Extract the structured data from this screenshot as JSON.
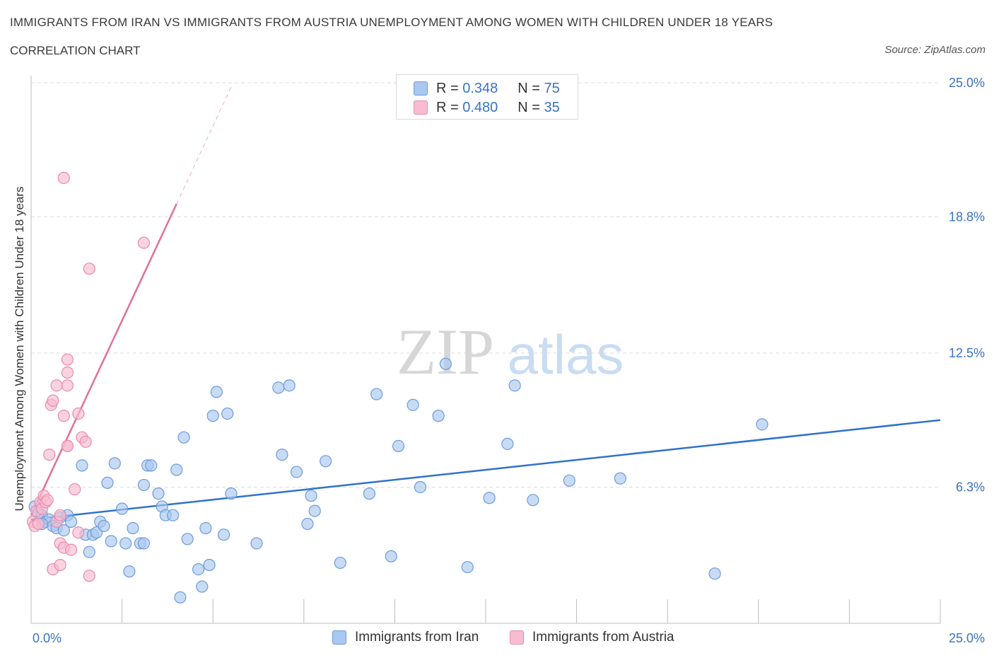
{
  "header": {
    "title": "IMMIGRANTS FROM IRAN VS IMMIGRANTS FROM AUSTRIA UNEMPLOYMENT AMONG WOMEN WITH CHILDREN UNDER 18 YEARS",
    "subtitle": "CORRELATION CHART",
    "source": "Source: ZipAtlas.com"
  },
  "watermark": {
    "zip": "ZIP",
    "atlas": "atlas"
  },
  "legend": {
    "rows": [
      {
        "r_label": "R =",
        "r_value": "0.348",
        "n_label": "N =",
        "n_value": "75"
      },
      {
        "r_label": "R =",
        "r_value": "0.480",
        "n_label": "N =",
        "n_value": "35"
      }
    ]
  },
  "bottom_legend": {
    "iran": "Immigrants from Iran",
    "austria": "Immigrants from Austria"
  },
  "colors": {
    "iran_fill": "#a9c8f0",
    "iran_stroke": "#6d9bd8",
    "iran_line": "#2f72cc",
    "austria_fill": "#f7bcd0",
    "austria_stroke": "#e98aab",
    "austria_line": "#e0709a",
    "tick_text": "#3a72c4",
    "grid": "#dcdcdc"
  },
  "chart_data": {
    "type": "scatter",
    "title": "IMMIGRANTS FROM IRAN VS IMMIGRANTS FROM AUSTRIA UNEMPLOYMENT AMONG WOMEN WITH CHILDREN UNDER 18 YEARS",
    "xlabel": "",
    "ylabel": "Unemployment Among Women with Children Under 18 years",
    "xlim": [
      0,
      25
    ],
    "ylim": [
      0,
      25
    ],
    "x_tick_labels": [
      "0.0%",
      "25.0%"
    ],
    "y_ticks": [
      6.3,
      12.5,
      18.8,
      25.0
    ],
    "y_tick_labels": [
      "6.3%",
      "12.5%",
      "18.8%",
      "25.0%"
    ],
    "series": [
      {
        "name": "Immigrants from Iran",
        "r": 0.348,
        "n": 75,
        "trend": {
          "x": [
            0,
            25
          ],
          "y": [
            4.8,
            9.4
          ]
        },
        "points": [
          [
            0.1,
            5.4
          ],
          [
            0.2,
            5.1
          ],
          [
            0.3,
            5.0
          ],
          [
            0.4,
            4.7
          ],
          [
            0.5,
            4.8
          ],
          [
            0.6,
            4.5
          ],
          [
            0.7,
            4.4
          ],
          [
            0.8,
            4.9
          ],
          [
            0.9,
            4.3
          ],
          [
            1.0,
            5.0
          ],
          [
            1.1,
            4.7
          ],
          [
            1.4,
            7.3
          ],
          [
            1.5,
            4.1
          ],
          [
            1.6,
            3.3
          ],
          [
            1.7,
            4.1
          ],
          [
            1.8,
            4.2
          ],
          [
            1.9,
            4.7
          ],
          [
            2.0,
            4.5
          ],
          [
            2.1,
            6.5
          ],
          [
            2.2,
            3.8
          ],
          [
            2.3,
            7.4
          ],
          [
            2.5,
            5.3
          ],
          [
            2.6,
            3.7
          ],
          [
            2.7,
            2.4
          ],
          [
            2.8,
            4.4
          ],
          [
            3.0,
            3.7
          ],
          [
            3.1,
            3.7
          ],
          [
            3.1,
            6.4
          ],
          [
            3.2,
            7.3
          ],
          [
            3.3,
            7.3
          ],
          [
            3.5,
            6.0
          ],
          [
            3.6,
            5.4
          ],
          [
            3.7,
            5.0
          ],
          [
            3.9,
            5.0
          ],
          [
            4.0,
            7.1
          ],
          [
            4.1,
            1.2
          ],
          [
            4.2,
            8.6
          ],
          [
            4.3,
            3.9
          ],
          [
            4.6,
            2.5
          ],
          [
            4.7,
            1.7
          ],
          [
            4.8,
            4.4
          ],
          [
            4.9,
            2.7
          ],
          [
            5.0,
            9.6
          ],
          [
            5.1,
            10.7
          ],
          [
            5.3,
            4.1
          ],
          [
            5.4,
            9.7
          ],
          [
            5.5,
            6.0
          ],
          [
            6.2,
            3.7
          ],
          [
            6.8,
            10.9
          ],
          [
            6.9,
            7.8
          ],
          [
            7.1,
            11.0
          ],
          [
            7.3,
            7.0
          ],
          [
            7.6,
            4.6
          ],
          [
            7.7,
            5.9
          ],
          [
            7.8,
            5.2
          ],
          [
            8.1,
            7.5
          ],
          [
            8.5,
            2.8
          ],
          [
            9.3,
            6.0
          ],
          [
            9.5,
            10.6
          ],
          [
            9.9,
            3.1
          ],
          [
            10.1,
            8.2
          ],
          [
            10.5,
            10.1
          ],
          [
            10.7,
            6.3
          ],
          [
            11.2,
            9.6
          ],
          [
            11.4,
            12.0
          ],
          [
            12.0,
            2.6
          ],
          [
            12.6,
            5.8
          ],
          [
            13.1,
            8.3
          ],
          [
            13.3,
            11.0
          ],
          [
            13.8,
            5.7
          ],
          [
            14.8,
            6.6
          ],
          [
            16.2,
            6.7
          ],
          [
            18.8,
            2.3
          ],
          [
            20.1,
            9.2
          ],
          [
            0.3,
            4.6
          ]
        ]
      },
      {
        "name": "Immigrants from Austria",
        "r": 0.48,
        "n": 35,
        "trend": {
          "x": [
            0,
            4.0
          ],
          "y": [
            5.0,
            19.4
          ]
        },
        "trend_extension": {
          "x": [
            4.0,
            5.5
          ],
          "y": [
            19.4,
            24.8
          ]
        },
        "points": [
          [
            0.05,
            4.7
          ],
          [
            0.1,
            4.5
          ],
          [
            0.15,
            5.2
          ],
          [
            0.2,
            4.6
          ],
          [
            0.25,
            5.6
          ],
          [
            0.3,
            5.3
          ],
          [
            0.35,
            5.9
          ],
          [
            0.4,
            5.6
          ],
          [
            0.45,
            5.7
          ],
          [
            0.5,
            7.8
          ],
          [
            0.55,
            10.1
          ],
          [
            0.6,
            2.5
          ],
          [
            0.6,
            10.3
          ],
          [
            0.7,
            11.0
          ],
          [
            0.7,
            4.7
          ],
          [
            0.8,
            2.7
          ],
          [
            0.8,
            3.7
          ],
          [
            0.8,
            5.0
          ],
          [
            0.9,
            9.6
          ],
          [
            0.9,
            3.5
          ],
          [
            0.9,
            20.6
          ],
          [
            1.0,
            8.2
          ],
          [
            1.0,
            8.2
          ],
          [
            1.0,
            11.0
          ],
          [
            1.0,
            11.6
          ],
          [
            1.0,
            12.2
          ],
          [
            1.1,
            3.4
          ],
          [
            1.2,
            6.2
          ],
          [
            1.3,
            9.7
          ],
          [
            1.3,
            4.2
          ],
          [
            1.4,
            8.6
          ],
          [
            1.5,
            8.4
          ],
          [
            1.6,
            2.2
          ],
          [
            1.6,
            16.4
          ],
          [
            3.1,
            17.6
          ]
        ]
      }
    ]
  },
  "axis": {
    "x_left": "0.0%",
    "x_right": "25.0%",
    "y_label": "Unemployment Among Women with Children Under 18 years"
  }
}
